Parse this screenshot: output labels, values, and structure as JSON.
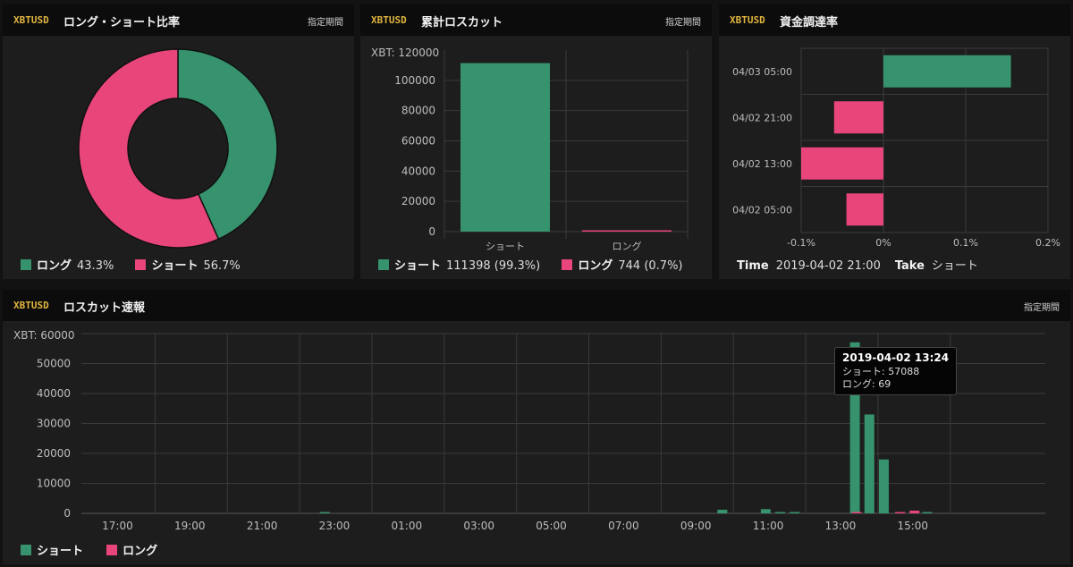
{
  "colors": {
    "short": "#36936d",
    "long": "#e8457a",
    "grid": "#3a3a3a",
    "axis_text": "#bdbdbd",
    "accent": "#e0b53f"
  },
  "ratio": {
    "symbol": "XBTUSD",
    "title": "ロング・ショート比率",
    "period": "指定期間",
    "legend": [
      {
        "name": "ロング",
        "value": "43.3%"
      },
      {
        "name": "ショート",
        "value": "56.7%"
      }
    ]
  },
  "cumulative": {
    "symbol": "XBTUSD",
    "title": "累計ロスカット",
    "period": "指定期間",
    "y_unit_label": "XBT: 120000",
    "legend": [
      {
        "name": "ショート",
        "value": "111398 (99.3%)"
      },
      {
        "name": "ロング",
        "value": "744 (0.7%)"
      }
    ]
  },
  "funding": {
    "symbol": "XBTUSD",
    "title": "資金調達率",
    "time_label": "Time",
    "time_value": "2019-04-02 21:00",
    "take_label": "Take",
    "take_value": "ショート"
  },
  "liq": {
    "symbol": "XBTUSD",
    "title": "ロスカット速報",
    "period": "指定期間",
    "y_unit_label": "XBT: 60000",
    "legend": [
      {
        "name": "ショート"
      },
      {
        "name": "ロング"
      }
    ],
    "tooltip": {
      "time": "2019-04-02 13:24",
      "short_line": "ショート: 57088",
      "long_line": "ロング: 69"
    }
  },
  "chart_data": [
    {
      "type": "pie",
      "title": "ロング・ショート比率",
      "labels": [
        "ロング",
        "ショート"
      ],
      "values": [
        43.3,
        56.7
      ]
    },
    {
      "type": "bar",
      "title": "累計ロスカット",
      "categories": [
        "ショート",
        "ロング"
      ],
      "values": [
        111398,
        744
      ],
      "ylim": [
        0,
        120000
      ],
      "yticks": [
        0,
        20000,
        40000,
        60000,
        80000,
        100000
      ],
      "ylabel": "XBT"
    },
    {
      "type": "bar",
      "orientation": "horizontal",
      "title": "資金調達率",
      "categories": [
        "04/03 05:00",
        "04/02 21:00",
        "04/02 13:00",
        "04/02 05:00"
      ],
      "values": [
        0.155,
        -0.06,
        -0.1,
        -0.045
      ],
      "xlim": [
        -0.1,
        0.2
      ],
      "xticks": [
        -0.1,
        0,
        0.1,
        0.2
      ],
      "xtick_labels": [
        "-0.1%",
        "0%",
        "0.1%",
        "0.2%"
      ]
    },
    {
      "type": "bar",
      "title": "ロスカット速報",
      "ylabel": "XBT",
      "ylim": [
        0,
        60000
      ],
      "yticks": [
        0,
        10000,
        20000,
        30000,
        40000,
        50000,
        60000
      ],
      "xticks": [
        "17:00",
        "19:00",
        "21:00",
        "23:00",
        "01:00",
        "03:00",
        "05:00",
        "07:00",
        "09:00",
        "11:00",
        "13:00",
        "15:00"
      ],
      "xlim": [
        "2019-04-01 16:00",
        "2019-04-02 18:40"
      ],
      "series": [
        {
          "name": "ショート",
          "points": [
            [
              "2019-04-01 22:44",
              400
            ],
            [
              "2019-04-02 09:44",
              1200
            ],
            [
              "2019-04-02 10:56",
              1400
            ],
            [
              "2019-04-02 11:20",
              300
            ],
            [
              "2019-04-02 11:44",
              200
            ],
            [
              "2019-04-02 13:24",
              57088
            ],
            [
              "2019-04-02 13:48",
              33000
            ],
            [
              "2019-04-02 14:12",
              18000
            ],
            [
              "2019-04-02 15:24",
              400
            ]
          ]
        },
        {
          "name": "ロング",
          "points": [
            [
              "2019-04-02 13:24",
              69
            ],
            [
              "2019-04-02 14:36",
              300
            ],
            [
              "2019-04-02 15:00",
              900
            ]
          ]
        }
      ]
    }
  ]
}
